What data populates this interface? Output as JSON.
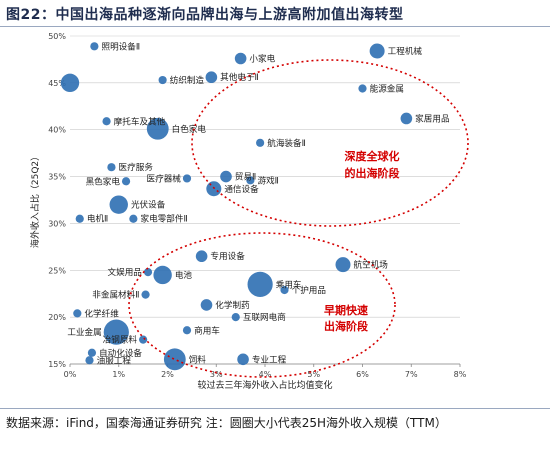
{
  "header": {
    "title": "图22：中国出海品种逐渐向品牌出海与上游高附加值出海转型"
  },
  "footer": {
    "source": "数据来源：iFind，国泰海通证券研究  注：圆圈大小代表25H海外收入规模（TTM）"
  },
  "colors": {
    "bubble": "#2e6fb2",
    "ellipse": "#d40000",
    "grid": "#c9c9c9"
  },
  "annotations": {
    "upper": [
      "深度全球化",
      "的出海阶段"
    ],
    "lower": [
      "早期快速",
      "出海阶段"
    ]
  },
  "chart_data": {
    "type": "scatter",
    "xlabel": "较过去三年海外收入占比均值变化",
    "ylabel": "海外收入占比（25Q2）",
    "xlim": [
      0,
      8
    ],
    "ylim": [
      15,
      50
    ],
    "x_ticks": [
      "0%",
      "1%",
      "2%",
      "3%",
      "4%",
      "5%",
      "6%",
      "7%",
      "8%"
    ],
    "y_ticks": [
      "15%",
      "20%",
      "25%",
      "30%",
      "35%",
      "40%",
      "45%",
      "50%"
    ],
    "grid": "horizontal",
    "points": [
      {
        "label": "照明设备Ⅱ",
        "x": 0.5,
        "y": 48.9,
        "size": 1
      },
      {
        "label": "小家电",
        "x": 3.5,
        "y": 47.6,
        "size": 2
      },
      {
        "label": "工程机械",
        "x": 6.3,
        "y": 48.4,
        "size": 3
      },
      {
        "label": "纺织制造",
        "x": 1.9,
        "y": 45.3,
        "size": 1
      },
      {
        "label": "其他电子Ⅱ",
        "x": 2.9,
        "y": 45.6,
        "size": 2
      },
      {
        "label": "",
        "x": 0.0,
        "y": 45.0,
        "size": 4
      },
      {
        "label": "能源金属",
        "x": 6.0,
        "y": 44.4,
        "size": 1
      },
      {
        "label": "摩托车及其他",
        "x": 0.75,
        "y": 40.9,
        "size": 1
      },
      {
        "label": "家居用品",
        "x": 6.9,
        "y": 41.2,
        "size": 2
      },
      {
        "label": "白色家电",
        "x": 1.8,
        "y": 40.1,
        "size": 5
      },
      {
        "label": "航海装备Ⅱ",
        "x": 3.9,
        "y": 38.6,
        "size": 1
      },
      {
        "label": "医疗服务",
        "x": 0.85,
        "y": 36.0,
        "size": 1
      },
      {
        "label": "医疗器械",
        "x": 2.4,
        "y": 34.8,
        "size": 1
      },
      {
        "label": "贸易Ⅱ",
        "x": 3.2,
        "y": 35.0,
        "size": 2
      },
      {
        "label": "黑色家电",
        "x": 1.15,
        "y": 34.5,
        "size": 1
      },
      {
        "label": "游戏Ⅱ",
        "x": 3.7,
        "y": 34.6,
        "size": 1
      },
      {
        "label": "通信设备",
        "x": 2.95,
        "y": 33.7,
        "size": 3
      },
      {
        "label": "光伏设备",
        "x": 1.0,
        "y": 32.0,
        "size": 4
      },
      {
        "label": "电机Ⅱ",
        "x": 0.2,
        "y": 30.5,
        "size": 1
      },
      {
        "label": "家电零部件Ⅱ",
        "x": 1.3,
        "y": 30.5,
        "size": 1
      },
      {
        "label": "专用设备",
        "x": 2.7,
        "y": 26.5,
        "size": 2
      },
      {
        "label": "航空机场",
        "x": 5.6,
        "y": 25.6,
        "size": 3
      },
      {
        "label": "文娱用品",
        "x": 1.6,
        "y": 24.8,
        "size": 1
      },
      {
        "label": "电池",
        "x": 1.9,
        "y": 24.5,
        "size": 4
      },
      {
        "label": "乘用车",
        "x": 3.9,
        "y": 23.5,
        "size": 6
      },
      {
        "label": "个护用品",
        "x": 4.4,
        "y": 22.9,
        "size": 1
      },
      {
        "label": "非金属材料Ⅱ",
        "x": 1.55,
        "y": 22.4,
        "size": 1
      },
      {
        "label": "化学制药",
        "x": 2.8,
        "y": 21.3,
        "size": 2
      },
      {
        "label": "化学纤维",
        "x": 0.15,
        "y": 20.4,
        "size": 1
      },
      {
        "label": "互联网电商",
        "x": 3.4,
        "y": 20.0,
        "size": 1
      },
      {
        "label": "工业金属",
        "x": 0.95,
        "y": 18.4,
        "size": 6
      },
      {
        "label": "商用车",
        "x": 2.4,
        "y": 18.6,
        "size": 1
      },
      {
        "label": "冶钢原料",
        "x": 1.5,
        "y": 17.6,
        "size": 1
      },
      {
        "label": "自动化设备",
        "x": 0.45,
        "y": 16.2,
        "size": 1
      },
      {
        "label": "油服工程",
        "x": 0.4,
        "y": 15.4,
        "size": 1
      },
      {
        "label": "饲料",
        "x": 2.15,
        "y": 15.5,
        "size": 5
      },
      {
        "label": "专业工程",
        "x": 3.55,
        "y": 15.5,
        "size": 2
      }
    ]
  }
}
